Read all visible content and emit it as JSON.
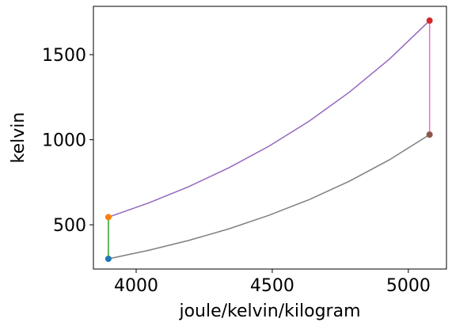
{
  "chart_data": {
    "type": "line",
    "xlabel": "joule/kelvin/kilogram",
    "ylabel": "kelvin",
    "xlim": [
      3843,
      5140
    ],
    "ylim": [
      240,
      1784
    ],
    "xticks": [
      4000,
      4500,
      5000
    ],
    "yticks": [
      500,
      1000,
      1500
    ],
    "series": [
      {
        "color": "#2ca02c",
        "style": "line",
        "x": [
          3898,
          3898
        ],
        "values": [
          300,
          545
        ]
      },
      {
        "color": "#9467bd",
        "style": "line",
        "x": [
          3898,
          4045.5,
          4193,
          4340.5,
          4488,
          4635.5,
          4783,
          4930.5,
          5078
        ],
        "values": [
          545,
          628,
          724,
          835,
          962,
          1109,
          1279,
          1474,
          1700
        ]
      },
      {
        "color": "#e377c2",
        "style": "line",
        "x": [
          5078,
          5078
        ],
        "values": [
          1700,
          1030
        ]
      },
      {
        "color": "#7f7f7f",
        "style": "line",
        "x": [
          5078,
          4930.5,
          4783,
          4635.5,
          4488,
          4340.5,
          4193,
          4045.5,
          3898
        ],
        "values": [
          1030,
          882,
          756,
          648,
          556,
          476,
          408,
          350,
          300
        ]
      },
      {
        "color": "#1f77b4",
        "style": "marker",
        "x": [
          3898
        ],
        "values": [
          300
        ]
      },
      {
        "color": "#ff7f0e",
        "style": "marker",
        "x": [
          3898
        ],
        "values": [
          545
        ]
      },
      {
        "color": "#d62728",
        "style": "marker",
        "x": [
          5078
        ],
        "values": [
          1700
        ]
      },
      {
        "color": "#8c564b",
        "style": "marker",
        "x": [
          5078
        ],
        "values": [
          1030
        ]
      }
    ]
  }
}
